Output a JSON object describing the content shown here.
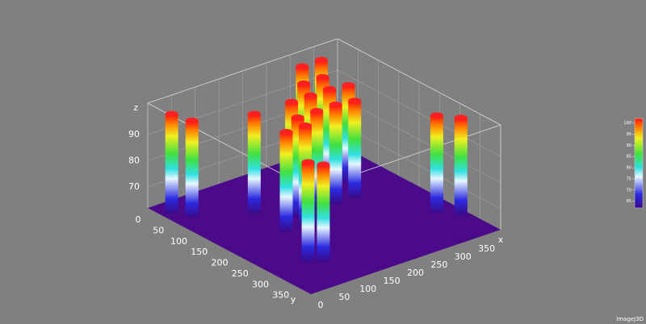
{
  "chart_data": {
    "type": "pillar3d",
    "x_label": "x",
    "y_label": "y",
    "z_label": "z",
    "xlim": [
      0,
      400
    ],
    "ylim": [
      0,
      400
    ],
    "zlim": [
      62,
      102
    ],
    "xticks": [
      0,
      50,
      100,
      150,
      200,
      250,
      300,
      350
    ],
    "yticks": [
      0,
      50,
      100,
      150,
      200,
      250,
      300,
      350
    ],
    "zticks": [
      70,
      80,
      90
    ],
    "x": [
      340,
      300,
      300,
      320,
      260,
      280,
      290,
      240,
      250,
      200,
      360,
      385,
      210,
      123,
      170,
      17,
      33,
      160,
      120,
      95,
      75
    ],
    "y": [
      30,
      30,
      80,
      120,
      80,
      120,
      170,
      120,
      170,
      120,
      290,
      320,
      170,
      118,
      170,
      39,
      70,
      200,
      200,
      320,
      306
    ],
    "values": [
      100,
      100,
      100,
      99,
      100,
      100,
      99,
      100,
      100,
      100,
      99,
      99,
      100,
      100,
      100,
      100,
      99,
      100,
      100,
      99,
      100
    ],
    "floor_color": "#4a0a8a",
    "colorbar": {
      "lim": [
        62,
        102
      ],
      "ticks": [
        65,
        70,
        75,
        80,
        85,
        90,
        95,
        100
      ]
    },
    "watermark": "ImageJ3D"
  }
}
